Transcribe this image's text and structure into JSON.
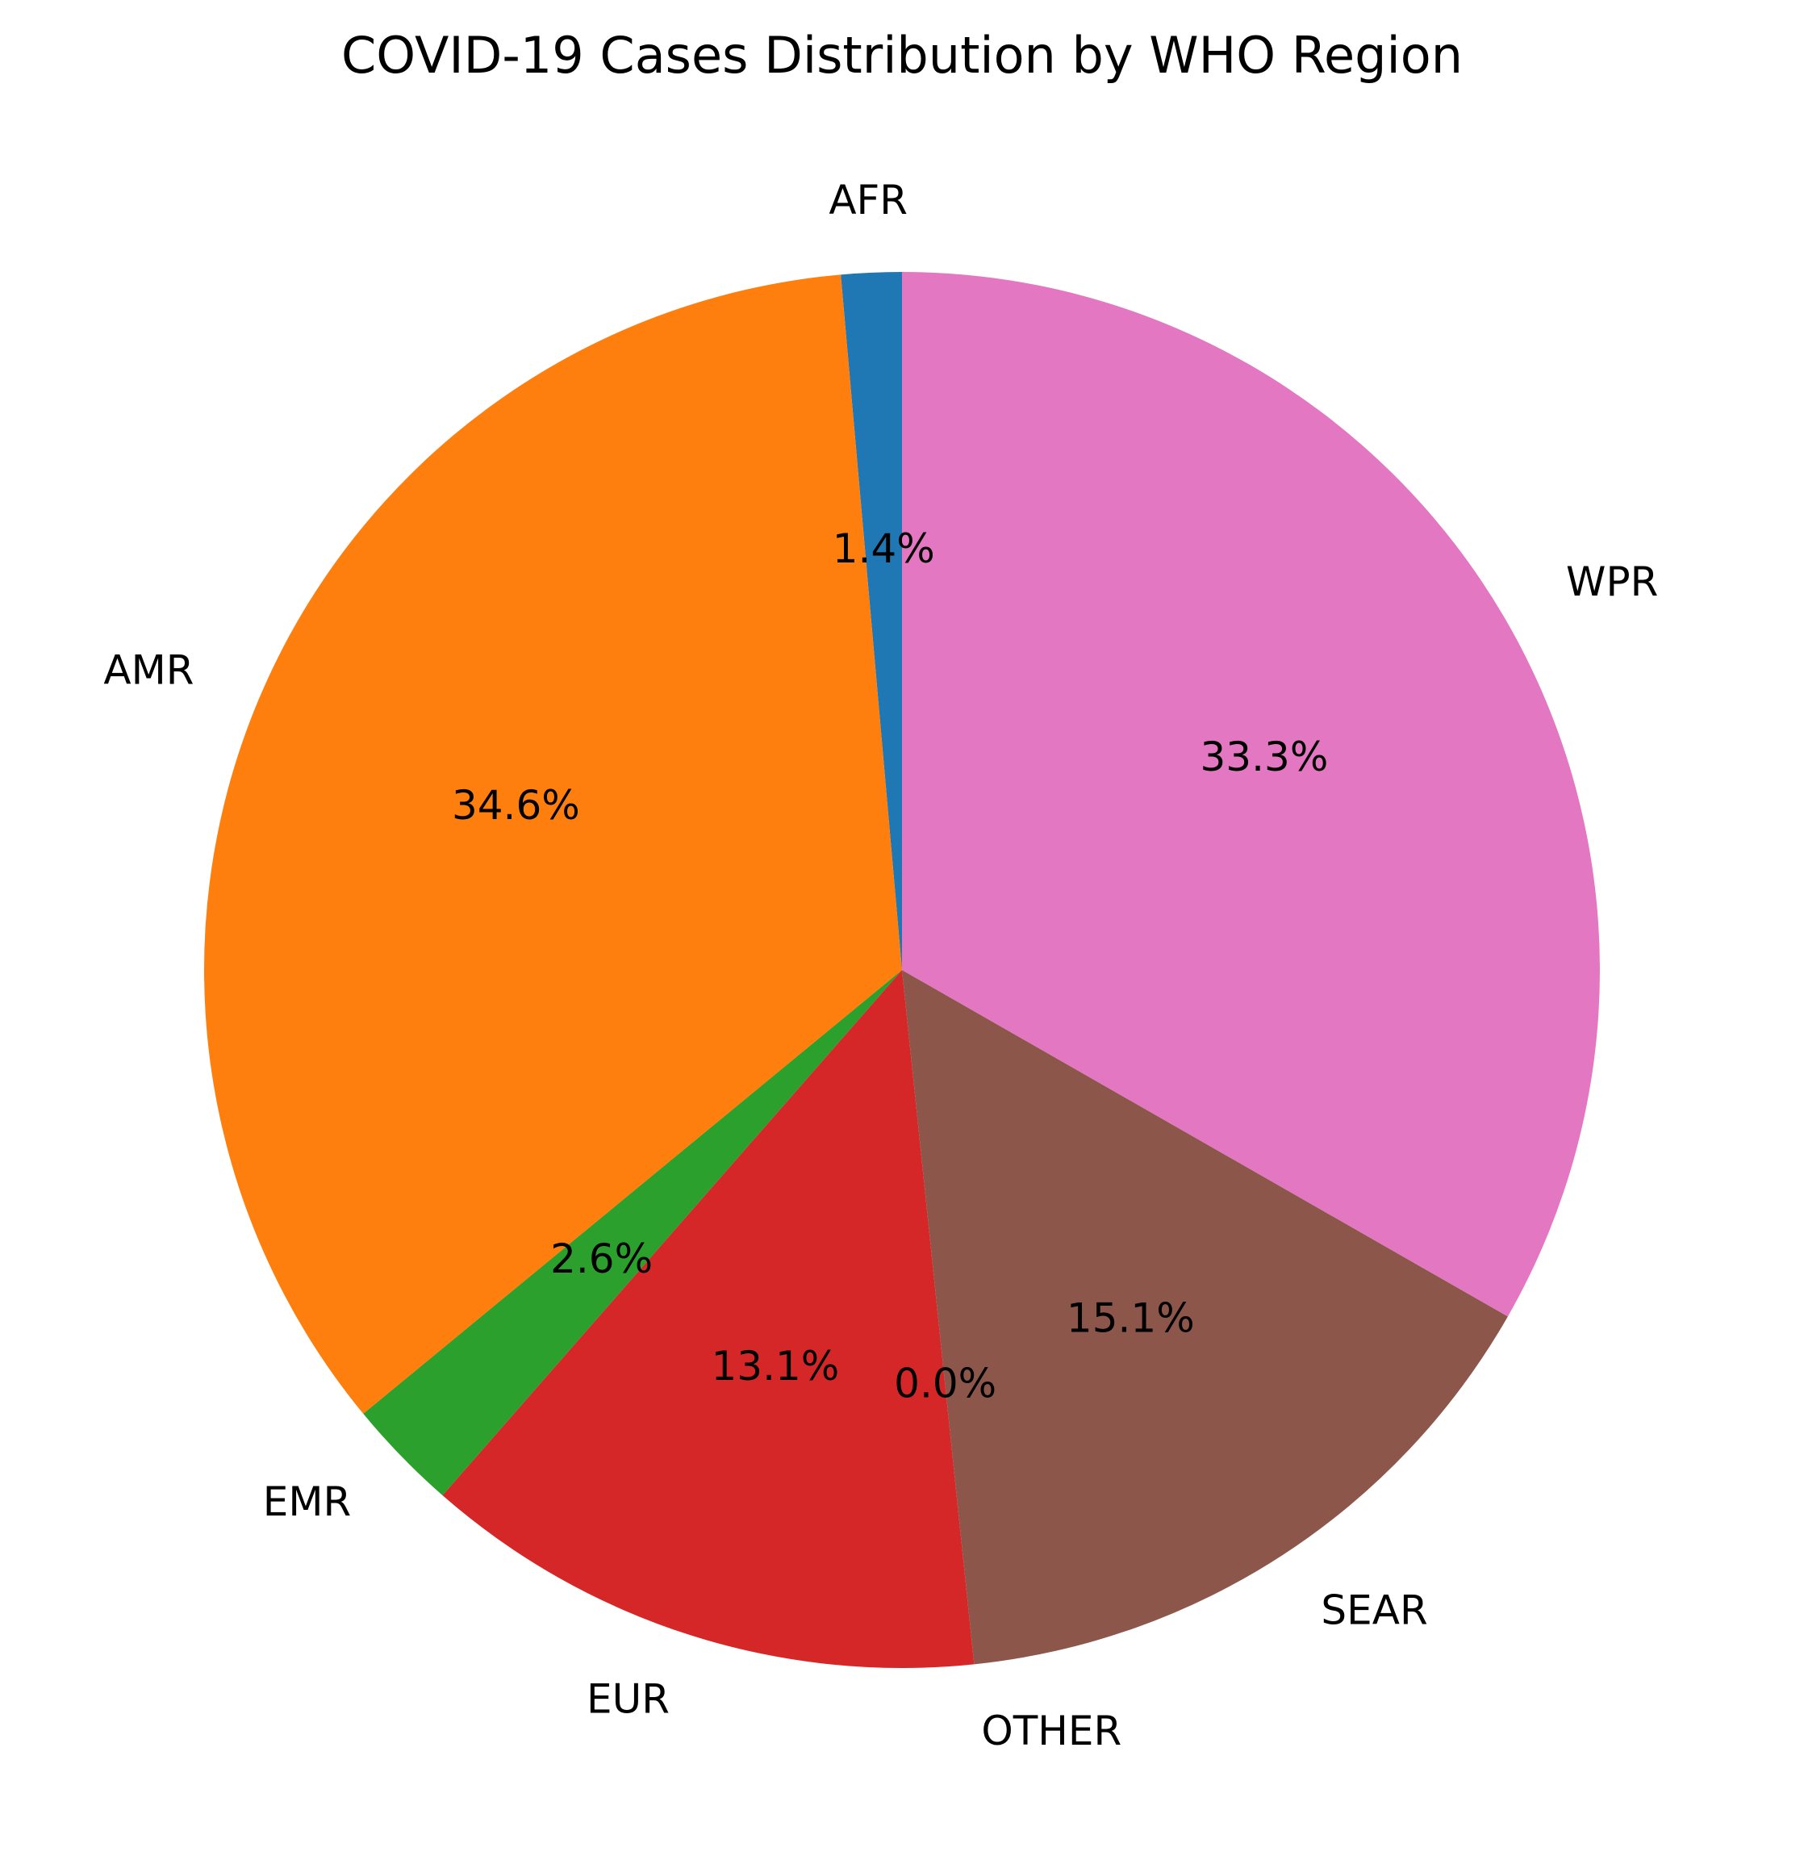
{
  "chart_data": {
    "type": "pie",
    "title": "COVID-19 Cases Distribution by WHO Region",
    "start_angle_deg": 90,
    "direction": "counterclockwise",
    "slices": [
      {
        "label": "AFR",
        "value": 1.4,
        "pct_text": "1.4%",
        "color": "#1f77b4"
      },
      {
        "label": "AMR",
        "value": 34.6,
        "pct_text": "34.6%",
        "color": "#ff7f0e"
      },
      {
        "label": "EMR",
        "value": 2.6,
        "pct_text": "2.6%",
        "color": "#2ca02c"
      },
      {
        "label": "EUR",
        "value": 13.1,
        "pct_text": "13.1%",
        "color": "#d62728"
      },
      {
        "label": "OTHER",
        "value": 0.0,
        "pct_text": "0.0%",
        "color": "#9467bd"
      },
      {
        "label": "SEAR",
        "value": 15.1,
        "pct_text": "15.1%",
        "color": "#8c564b"
      },
      {
        "label": "WPR",
        "value": 33.3,
        "pct_text": "33.3%",
        "color": "#e377c2"
      }
    ]
  }
}
